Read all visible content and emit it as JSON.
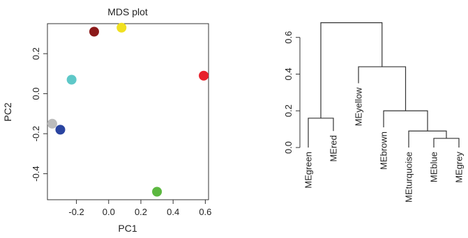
{
  "chart_data": [
    {
      "type": "scatter",
      "title": "MDS plot",
      "xlabel": "PC1",
      "ylabel": "PC2",
      "xlim": [
        -0.38,
        0.62
      ],
      "ylim": [
        -0.53,
        0.35
      ],
      "xticks": [
        {
          "value": -0.2,
          "label": "-0.2"
        },
        {
          "value": 0.0,
          "label": "0.0"
        },
        {
          "value": 0.2,
          "label": "0.2"
        },
        {
          "value": 0.4,
          "label": "0.4"
        },
        {
          "value": 0.6,
          "label": "0.6"
        }
      ],
      "yticks": [
        {
          "value": -0.4,
          "label": "-0.4"
        },
        {
          "value": -0.2,
          "label": "-0.2"
        },
        {
          "value": 0.0,
          "label": "0.0"
        },
        {
          "value": 0.2,
          "label": "0.2"
        }
      ],
      "points": [
        {
          "x": 0.08,
          "y": 0.33,
          "color": "#f0e020"
        },
        {
          "x": -0.09,
          "y": 0.31,
          "color": "#8b1a1a"
        },
        {
          "x": 0.59,
          "y": 0.09,
          "color": "#e8202a"
        },
        {
          "x": -0.23,
          "y": 0.07,
          "color": "#5ec8c8"
        },
        {
          "x": -0.35,
          "y": -0.15,
          "color": "#bcbcbc"
        },
        {
          "x": -0.3,
          "y": -0.18,
          "color": "#2a44a0"
        },
        {
          "x": 0.3,
          "y": -0.49,
          "color": "#5cb840"
        }
      ]
    },
    {
      "type": "dendrogram",
      "ylim": [
        0,
        0.69
      ],
      "yticks": [
        {
          "value": 0.0,
          "label": "0.0"
        },
        {
          "value": 0.2,
          "label": "0.2"
        },
        {
          "value": 0.4,
          "label": "0.4"
        },
        {
          "value": 0.6,
          "label": "0.6"
        }
      ],
      "leaves": [
        {
          "label": "MEgreen",
          "leaf_height": 0.0
        },
        {
          "label": "MEred",
          "leaf_height": 0.09
        },
        {
          "label": "MEyellow",
          "leaf_height": 0.35
        },
        {
          "label": "MEbrown",
          "leaf_height": 0.11
        },
        {
          "label": "MEturquoise",
          "leaf_height": 0.0
        },
        {
          "label": "MEblue",
          "leaf_height": 0.0
        },
        {
          "label": "MEgrey",
          "leaf_height": 0.0
        }
      ],
      "merges": [
        {
          "left": "L5",
          "right": "L6",
          "height": 0.05
        },
        {
          "left": "L4",
          "right": "N0",
          "height": 0.09
        },
        {
          "left": "L3",
          "right": "N1",
          "height": 0.2
        },
        {
          "left": "L2",
          "right": "N2",
          "height": 0.44
        },
        {
          "left": "L0",
          "right": "L1",
          "height": 0.16
        },
        {
          "left": "N4",
          "right": "N3",
          "height": 0.68
        }
      ]
    }
  ]
}
